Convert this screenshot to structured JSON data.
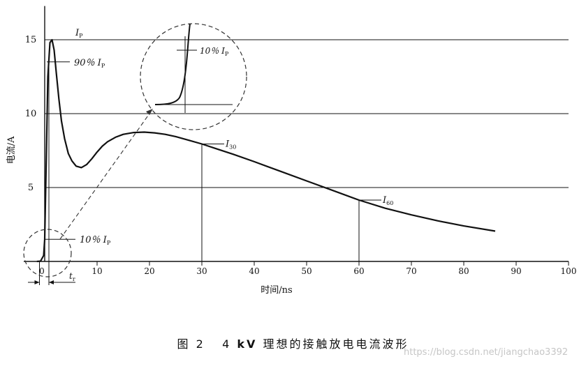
{
  "chart_data": {
    "type": "line",
    "title": "",
    "xlabel": "时间/ns",
    "ylabel": "电流/A",
    "xlim": [
      -2,
      100
    ],
    "ylim": [
      0,
      17
    ],
    "xticks": [
      10,
      20,
      30,
      40,
      50,
      60,
      70,
      80,
      90,
      100
    ],
    "yticks": [
      5,
      10,
      15
    ],
    "horizontal_gridlines": [
      5,
      10,
      15
    ],
    "grid": "horizontal lines at 5, 10, 15",
    "series": [
      {
        "x": [
          -1.5,
          -0.8,
          -0.2,
          0,
          0.3,
          0.6,
          1.0,
          1.4,
          1.8,
          2.2,
          2.7,
          3.2,
          3.8,
          4.5,
          5.2,
          6.0,
          7.0,
          8.0,
          9.0,
          10.0,
          11.0,
          12.0,
          13.5,
          15.0,
          17.0,
          19.0,
          21.0,
          23.0,
          25.0,
          27.5,
          30.0,
          33.0,
          36.0,
          40.0,
          45.0,
          50.0,
          55.0,
          60.0,
          65.0,
          70.0,
          75.0,
          80.0,
          86.0
        ],
        "y": [
          0,
          0.02,
          0.4,
          1.5,
          7.0,
          12.5,
          14.8,
          15.0,
          14.3,
          12.8,
          11.0,
          9.5,
          8.3,
          7.3,
          6.8,
          6.45,
          6.35,
          6.55,
          6.95,
          7.4,
          7.8,
          8.1,
          8.4,
          8.6,
          8.72,
          8.75,
          8.7,
          8.6,
          8.45,
          8.2,
          7.95,
          7.6,
          7.25,
          6.75,
          6.1,
          5.45,
          4.8,
          4.15,
          3.6,
          3.15,
          2.75,
          2.4,
          2.05
        ]
      }
    ],
    "annotations": {
      "ip_label": "I",
      "ip_sub": "P",
      "p90_label": "90％ I",
      "p90_sub": "P",
      "p10_label": "10％ I",
      "p10_sub": "P",
      "p10_zoom_label": "10％ I",
      "p10_zoom_sub": "P",
      "i30_label": "I",
      "i30_sub": "30",
      "i60_label": "I",
      "i60_sub": "60",
      "tr_label": "t",
      "tr_sub": "r"
    },
    "markers": {
      "ip_y": 15,
      "p90_y": 13.5,
      "p10_y": 1.5,
      "i30_x": 30,
      "i30_y": 7.95,
      "i60_x": 60,
      "i60_y": 4.15,
      "tr_x": [
        -1.0,
        0.8
      ]
    },
    "x_origin_label": "0"
  },
  "caption": {
    "figure_no": "图 2",
    "title_prefix": "4 ",
    "title_bold": "kV",
    "title_suffix": " 理想的接触放电电流波形"
  },
  "watermark": "https://blog.csdn.net/jiangchao3392"
}
